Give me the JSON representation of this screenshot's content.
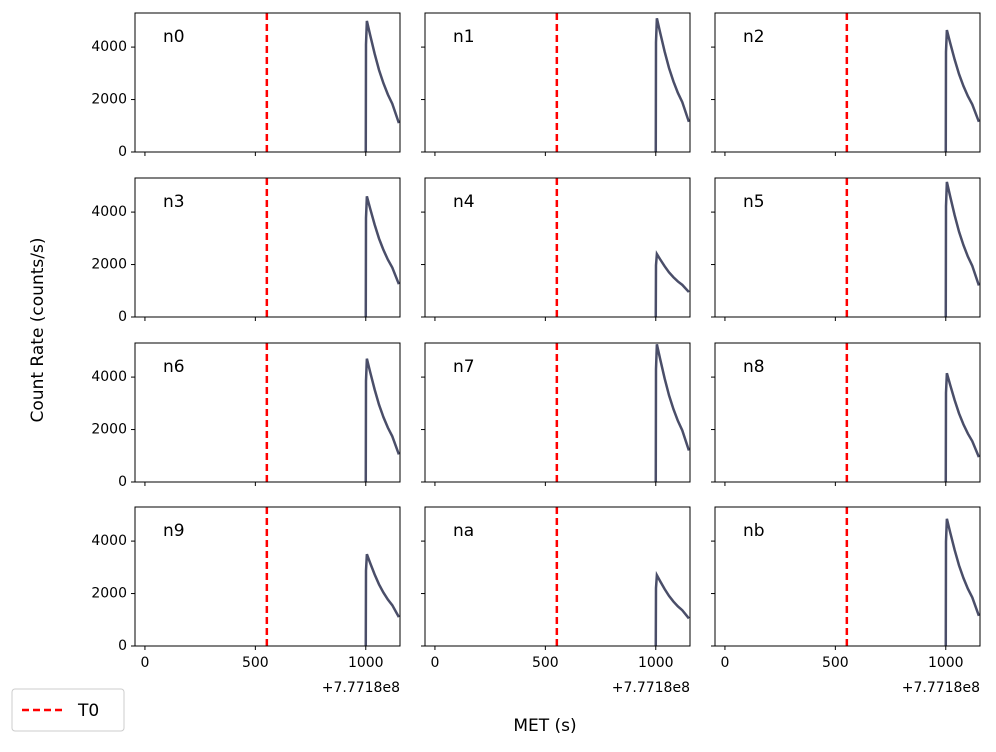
{
  "y_label": "Count Rate (counts/s)",
  "x_label": "MET (s)",
  "x_offset": "+7.7718e8",
  "legend": {
    "label": "T0",
    "color": "#ff0000"
  },
  "t0": 552,
  "xlim": [
    -45,
    1155
  ],
  "xticks": [
    0,
    500,
    1000
  ],
  "ylim": [
    0,
    5300
  ],
  "yticks": [
    0,
    2000,
    4000
  ],
  "line_color": "#4a4e69",
  "chart_data": [
    {
      "type": "line",
      "title": "n0",
      "x": [
        1000,
        1001,
        1005,
        1020,
        1040,
        1060,
        1080,
        1100,
        1120,
        1150
      ],
      "values": [
        0,
        4100,
        5000,
        4454,
        3752,
        3128,
        2621,
        2192,
        1841,
        1100
      ]
    },
    {
      "type": "line",
      "title": "n1",
      "x": [
        1000,
        1001,
        1005,
        1020,
        1040,
        1060,
        1080,
        1100,
        1120,
        1150
      ],
      "values": [
        0,
        4180,
        5100,
        4547,
        3836,
        3204,
        2691,
        2256,
        1901,
        1150
      ]
    },
    {
      "type": "line",
      "title": "n2",
      "x": [
        1000,
        1001,
        1005,
        1020,
        1040,
        1060,
        1080,
        1100,
        1120,
        1150
      ],
      "values": [
        0,
        3810,
        4650,
        4160,
        3530,
        2970,
        2515,
        2130,
        1815,
        1150
      ]
    },
    {
      "type": "line",
      "title": "n3",
      "x": [
        1000,
        1001,
        1005,
        1020,
        1040,
        1060,
        1080,
        1100,
        1120,
        1150
      ],
      "values": [
        0,
        3770,
        4600,
        4131,
        3528,
        2992,
        2557,
        2188,
        1887,
        1250
      ]
    },
    {
      "type": "line",
      "title": "n4",
      "x": [
        1000,
        1001,
        1005,
        1020,
        1040,
        1060,
        1080,
        1100,
        1120,
        1150
      ],
      "values": [
        0,
        1970,
        2400,
        2197,
        1936,
        1704,
        1516,
        1356,
        1226,
        950
      ]
    },
    {
      "type": "line",
      "title": "n5",
      "x": [
        1000,
        1001,
        1005,
        1020,
        1040,
        1060,
        1080,
        1100,
        1120,
        1150
      ],
      "values": [
        0,
        4220,
        5150,
        4597,
        3886,
        3254,
        2741,
        2306,
        1951,
        1200
      ]
    },
    {
      "type": "line",
      "title": "n6",
      "x": [
        1000,
        1001,
        1005,
        1020,
        1040,
        1060,
        1080,
        1100,
        1120,
        1150
      ],
      "values": [
        0,
        3850,
        4700,
        4189,
        3532,
        2948,
        2474,
        2072,
        1744,
        1050
      ]
    },
    {
      "type": "line",
      "title": "n7",
      "x": [
        1000,
        1001,
        1005,
        1020,
        1040,
        1060,
        1080,
        1100,
        1120,
        1150
      ],
      "values": [
        0,
        4300,
        5250,
        4683,
        3954,
        3306,
        2780,
        2334,
        1970,
        1200
      ]
    },
    {
      "type": "line",
      "title": "n8",
      "x": [
        1000,
        1001,
        1005,
        1020,
        1040,
        1060,
        1080,
        1100,
        1120,
        1150
      ],
      "values": [
        0,
        3400,
        4150,
        3702,
        3126,
        2614,
        2198,
        1846,
        1558,
        950
      ]
    },
    {
      "type": "line",
      "title": "n9",
      "x": [
        1000,
        1001,
        1005,
        1020,
        1040,
        1060,
        1080,
        1100,
        1120,
        1150
      ],
      "values": [
        0,
        2870,
        3500,
        3164,
        2732,
        2348,
        2036,
        1772,
        1556,
        1100
      ]
    },
    {
      "type": "line",
      "title": "na",
      "x": [
        1000,
        1001,
        1005,
        1020,
        1040,
        1060,
        1080,
        1100,
        1120,
        1150
      ],
      "values": [
        0,
        2210,
        2700,
        2469,
        2172,
        1908,
        1694,
        1512,
        1364,
        1050
      ]
    },
    {
      "type": "line",
      "title": "nb",
      "x": [
        1000,
        1001,
        1005,
        1020,
        1040,
        1060,
        1080,
        1100,
        1120,
        1150
      ],
      "values": [
        0,
        3980,
        4850,
        4332,
        3666,
        3074,
        2593,
        2186,
        1853,
        1150
      ]
    }
  ]
}
